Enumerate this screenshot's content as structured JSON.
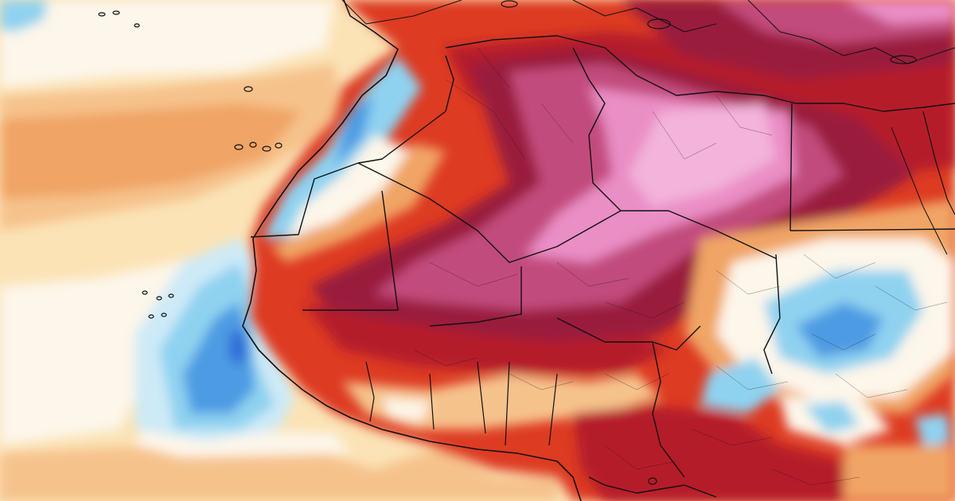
{
  "map": {
    "type": "temperature-anomaly",
    "region": "north-west-africa",
    "labels": [],
    "colors": {
      "ocean_base": "#fbe3b6",
      "pale_white": "#fdf6ea",
      "light_orange": "#f6c28c",
      "orange": "#f0a465",
      "red": "#dd3b24",
      "dark_red": "#b51c2b",
      "maroon": "#9a1f3e",
      "magenta": "#c24b7d",
      "pink": "#ea8ec6",
      "light_pink": "#f3b3da",
      "cyan": "#cdeaf7",
      "light_blue": "#8fd2f0",
      "blue": "#4d9be3",
      "deep_blue": "#2f6ed6",
      "border": "#111111"
    }
  }
}
